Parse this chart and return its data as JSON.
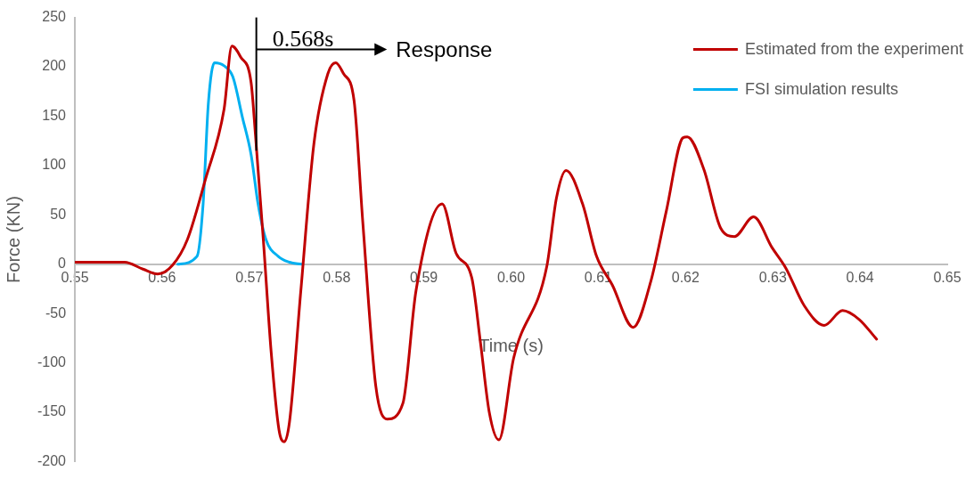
{
  "chart_data": {
    "type": "line",
    "xlabel": "Time (s)",
    "ylabel": "Force (KN)",
    "xlim": [
      0.55,
      0.65
    ],
    "xticks": [
      0.55,
      0.56,
      0.57,
      0.58,
      0.59,
      {
        "value": 0.6,
        "label": "0.60"
      },
      0.61,
      0.62,
      0.63,
      0.64,
      0.65
    ],
    "ylim": [
      -200,
      250
    ],
    "yticks": [
      -200,
      -150,
      -100,
      -50,
      0,
      50,
      100,
      150,
      200,
      250
    ],
    "grid": false,
    "legend": "top right",
    "marker": "none",
    "line_style": "solid",
    "series": [
      {
        "name": "Estimated from the experiment",
        "color": "#c00000",
        "x": [
          0.55,
          0.5557,
          0.5578,
          0.5595,
          0.5612,
          0.5629,
          0.565,
          0.5671,
          0.568,
          0.569,
          0.5702,
          0.5707,
          0.5716,
          0.5725,
          0.5734,
          0.574,
          0.5746,
          0.5759,
          0.5774,
          0.579,
          0.5799,
          0.5808,
          0.582,
          0.583,
          0.5845,
          0.5858,
          0.5876,
          0.5891,
          0.5921,
          0.5937,
          0.5955,
          0.5965,
          0.5975,
          0.5986,
          0.6003,
          0.6041,
          0.6052,
          0.6063,
          0.6082,
          0.6098,
          0.6116,
          0.614,
          0.616,
          0.6178,
          0.6197,
          0.6202,
          0.6221,
          0.624,
          0.6256,
          0.6278,
          0.6299,
          0.6315,
          0.6336,
          0.6359,
          0.638,
          0.6399,
          0.6419
        ],
        "values": [
          2,
          2,
          -5,
          -10,
          -1,
          25,
          87,
          157,
          221,
          210,
          184,
          131,
          25,
          -89,
          -168,
          -180,
          -160,
          -27,
          122,
          193,
          204,
          193,
          166,
          43,
          -124,
          -157,
          -141,
          -27,
          61,
          11,
          -14,
          -80,
          -150,
          -178,
          -95,
          -2,
          67,
          95,
          61,
          8,
          -21,
          -64,
          -18,
          54,
          128,
          129,
          96,
          37,
          28,
          48,
          17,
          -4,
          -42,
          -62,
          -47,
          -56,
          -76
        ]
      },
      {
        "name": "FSI simulation results",
        "color": "#00b0f0",
        "x": [
          0.5618,
          0.564,
          0.5647,
          0.5653,
          0.566,
          0.5671,
          0.5681,
          0.5692,
          0.5702,
          0.571,
          0.5719,
          0.5733,
          0.5746,
          0.576
        ],
        "values": [
          0,
          8,
          61,
          163,
          204,
          201,
          190,
          149,
          111,
          61,
          25,
          8,
          2,
          0
        ]
      }
    ],
    "ref_lines": [
      {
        "axis": "x",
        "value": 0.5708
      }
    ],
    "annotations": [
      "0.568s",
      "Response"
    ]
  }
}
